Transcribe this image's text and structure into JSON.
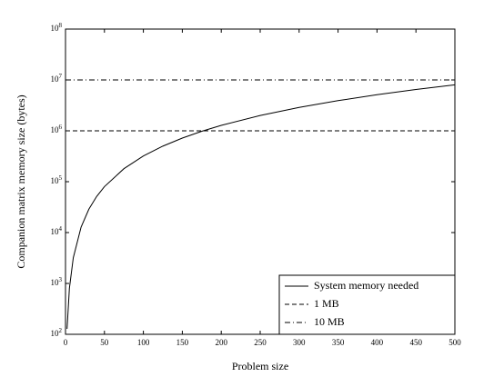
{
  "chart_data": {
    "type": "line",
    "xlabel": "Problem size",
    "ylabel": "Companion matrix memory size (bytes)",
    "xlim": [
      0,
      500
    ],
    "xticks": [
      0,
      50,
      100,
      150,
      200,
      250,
      300,
      350,
      400,
      450,
      500
    ],
    "ylim": [
      100,
      100000000
    ],
    "yscale": "log",
    "yticks": [
      {
        "value": 100,
        "label": "10^2"
      },
      {
        "value": 1000,
        "label": "10^3"
      },
      {
        "value": 10000,
        "label": "10^4"
      },
      {
        "value": 100000,
        "label": "10^5"
      },
      {
        "value": 1000000,
        "label": "10^6"
      },
      {
        "value": 10000000,
        "label": "10^7"
      },
      {
        "value": 100000000,
        "label": "10^8"
      }
    ],
    "legend": "lower right",
    "series": [
      {
        "name": "System memory needed",
        "color": "#000000",
        "dash": "solid",
        "x": [
          2,
          5,
          10,
          20,
          30,
          40,
          50,
          75,
          100,
          125,
          150,
          175,
          200,
          250,
          300,
          350,
          400,
          450,
          500
        ],
        "values": [
          128,
          800,
          3200,
          12800,
          28800,
          51200,
          80000,
          180000,
          320000,
          500000,
          720000,
          980000,
          1280000,
          2000000,
          2880000,
          3920000,
          5120000,
          6480000,
          8000000
        ]
      },
      {
        "name": "1 MB",
        "color": "#000000",
        "dash": "dashed",
        "x": [
          0,
          500
        ],
        "values": [
          1000000,
          1000000
        ]
      },
      {
        "name": "10 MB",
        "color": "#000000",
        "dash": "dashdot",
        "x": [
          0,
          500
        ],
        "values": [
          10000000,
          10000000
        ]
      }
    ]
  }
}
